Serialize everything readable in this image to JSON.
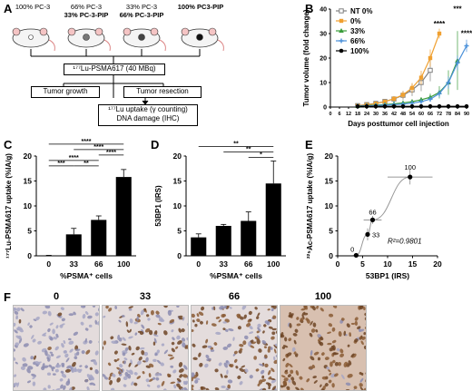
{
  "panel_letters": [
    "A",
    "B",
    "C",
    "D",
    "E",
    "F"
  ],
  "panel_a": {
    "groups": [
      {
        "line1": "100% PC-3",
        "line2": ""
      },
      {
        "line1": "66% PC-3",
        "line2": "33% PC-3-PIP"
      },
      {
        "line1": "33% PC-3",
        "line2": "66% PC-3-PIP"
      },
      {
        "line1": "100% PC3-PIP",
        "line2": ""
      }
    ],
    "treatment": "¹⁷⁷Lu-PSMA617 (40 MBq)",
    "growth": "Tumor growth",
    "resection": "Tumor resection",
    "uptake_line1": "¹⁷⁷Lu uptake (γ counting)",
    "uptake_line2": "DNA damage (IHC)"
  },
  "panel_f": {
    "labels": [
      "0",
      "33",
      "66",
      "100"
    ]
  },
  "chart_data": [
    {
      "panel": "B",
      "type": "line",
      "xlabel": "Days posttumor cell injection",
      "ylabel": "Tumor volume (fold change)",
      "xlim": [
        0,
        90
      ],
      "ylim": [
        0,
        40
      ],
      "xticks": [
        0,
        6,
        12,
        18,
        24,
        30,
        36,
        42,
        48,
        54,
        60,
        66,
        72,
        78,
        84,
        90
      ],
      "yticks": [
        0,
        10,
        20,
        30,
        40
      ],
      "legend_position": "top-left",
      "series": [
        {
          "name": "NT 0%",
          "color": "#808080",
          "marker": "square-open",
          "x": [
            18,
            24,
            30,
            36,
            42,
            48,
            54,
            60,
            66
          ],
          "y": [
            0.6,
            1.0,
            1.5,
            2.3,
            3.3,
            4.8,
            7.0,
            10.0,
            15.0
          ],
          "err": [
            0.3,
            0.4,
            0.6,
            0.8,
            1.2,
            1.8,
            2.5,
            3.5,
            4.5
          ]
        },
        {
          "name": "0%",
          "color": "#f0a030",
          "marker": "square",
          "x": [
            18,
            24,
            30,
            36,
            42,
            48,
            54,
            60,
            66,
            72
          ],
          "y": [
            0.5,
            0.9,
            1.4,
            2.2,
            3.4,
            5.0,
            7.8,
            12.0,
            20.0,
            30.0
          ],
          "err": [
            0.2,
            0.3,
            0.5,
            0.7,
            1.0,
            1.5,
            2.0,
            2.8,
            3.5,
            2.0
          ]
        },
        {
          "name": "33%",
          "color": "#3a9c3a",
          "marker": "triangle",
          "x": [
            18,
            24,
            30,
            36,
            42,
            48,
            54,
            60,
            66,
            72,
            78,
            84
          ],
          "y": [
            0.4,
            0.6,
            0.8,
            1.0,
            1.3,
            1.7,
            2.2,
            3.0,
            4.0,
            6.0,
            10.0,
            19.0
          ],
          "err": [
            0.2,
            0.2,
            0.3,
            0.3,
            0.4,
            0.5,
            0.7,
            1.0,
            1.5,
            2.5,
            5.0,
            12.0
          ]
        },
        {
          "name": "66%",
          "color": "#4a90d9",
          "marker": "cross",
          "x": [
            18,
            24,
            30,
            36,
            42,
            48,
            54,
            60,
            66,
            72,
            78,
            84,
            90
          ],
          "y": [
            0.4,
            0.5,
            0.6,
            0.8,
            1.0,
            1.2,
            1.6,
            2.2,
            3.2,
            5.5,
            10.0,
            18.0,
            25.0
          ],
          "err": [
            0.2,
            0.2,
            0.2,
            0.3,
            0.3,
            0.4,
            0.5,
            0.7,
            1.0,
            1.5,
            2.5,
            3.0,
            2.5
          ]
        },
        {
          "name": "100%",
          "color": "#000000",
          "marker": "circle",
          "x": [
            18,
            24,
            30,
            36,
            42,
            48,
            54,
            60,
            66,
            72,
            78,
            84,
            90
          ],
          "y": [
            0.3,
            0.3,
            0.3,
            0.3,
            0.3,
            0.3,
            0.3,
            0.3,
            0.3,
            0.3,
            0.3,
            0.3,
            0.3
          ],
          "err": [
            0.1,
            0.1,
            0.1,
            0.1,
            0.1,
            0.1,
            0.1,
            0.1,
            0.1,
            0.1,
            0.1,
            0.1,
            0.1
          ]
        }
      ],
      "annotations": [
        {
          "text": "****",
          "x": 72,
          "y": 33
        },
        {
          "text": "***",
          "x": 84,
          "y": 39
        },
        {
          "text": "****",
          "x": 90,
          "y": 29
        }
      ]
    },
    {
      "panel": "C",
      "type": "bar",
      "categories": [
        "0",
        "33",
        "66",
        "100"
      ],
      "values": [
        0,
        4.3,
        7.2,
        15.8
      ],
      "errors": [
        0.1,
        1.2,
        0.8,
        1.5
      ],
      "xlabel": "%PSMA⁺ cells",
      "ylabel": "¹⁷⁷Lu-PSMA617 uptake (%IA/g)",
      "ylim": [
        0,
        20
      ],
      "yticks": [
        0,
        5,
        10,
        15,
        20
      ],
      "significance": [
        {
          "from": 0,
          "to": 1,
          "label": "***",
          "level": 1
        },
        {
          "from": 1,
          "to": 2,
          "label": "**",
          "level": 1
        },
        {
          "from": 0,
          "to": 2,
          "label": "****",
          "level": 2
        },
        {
          "from": 2,
          "to": 3,
          "label": "****",
          "level": 3
        },
        {
          "from": 1,
          "to": 3,
          "label": "****",
          "level": 4
        },
        {
          "from": 0,
          "to": 3,
          "label": "****",
          "level": 5
        }
      ]
    },
    {
      "panel": "D",
      "type": "bar",
      "categories": [
        "0",
        "33",
        "66",
        "100"
      ],
      "values": [
        3.7,
        6.0,
        7.0,
        14.5
      ],
      "errors": [
        0.7,
        0.3,
        1.8,
        4.5
      ],
      "xlabel": "%PSMA⁺ cells",
      "ylabel": "53BP1 (IRS)",
      "ylim": [
        0,
        20
      ],
      "yticks": [
        0,
        5,
        10,
        15,
        20
      ],
      "significance": [
        {
          "from": 2,
          "to": 3,
          "label": "*",
          "level": 1
        },
        {
          "from": 1,
          "to": 3,
          "label": "**",
          "level": 2
        },
        {
          "from": 0,
          "to": 3,
          "label": "**",
          "level": 3
        }
      ]
    },
    {
      "panel": "E",
      "type": "scatter",
      "xlabel": "53BP1 (IRS)",
      "ylabel": "²²⁵Ac-PSMA617 uptake (%IA/g)",
      "xlim": [
        0,
        20
      ],
      "ylim": [
        0,
        20
      ],
      "xticks": [
        0,
        5,
        10,
        15,
        20
      ],
      "yticks": [
        0,
        5,
        10,
        15,
        20
      ],
      "points": [
        {
          "label": "0",
          "x": 3.7,
          "y": 0.1,
          "xerr": 0.7,
          "yerr": 0.1
        },
        {
          "label": "33",
          "x": 6.0,
          "y": 4.3,
          "xerr": 0.3,
          "yerr": 1.2
        },
        {
          "label": "66",
          "x": 7.0,
          "y": 7.2,
          "xerr": 1.8,
          "yerr": 0.8
        },
        {
          "label": "100",
          "x": 14.5,
          "y": 15.8,
          "xerr": 4.5,
          "yerr": 1.5
        }
      ],
      "fit_annotation": "R²=0.9801"
    }
  ]
}
